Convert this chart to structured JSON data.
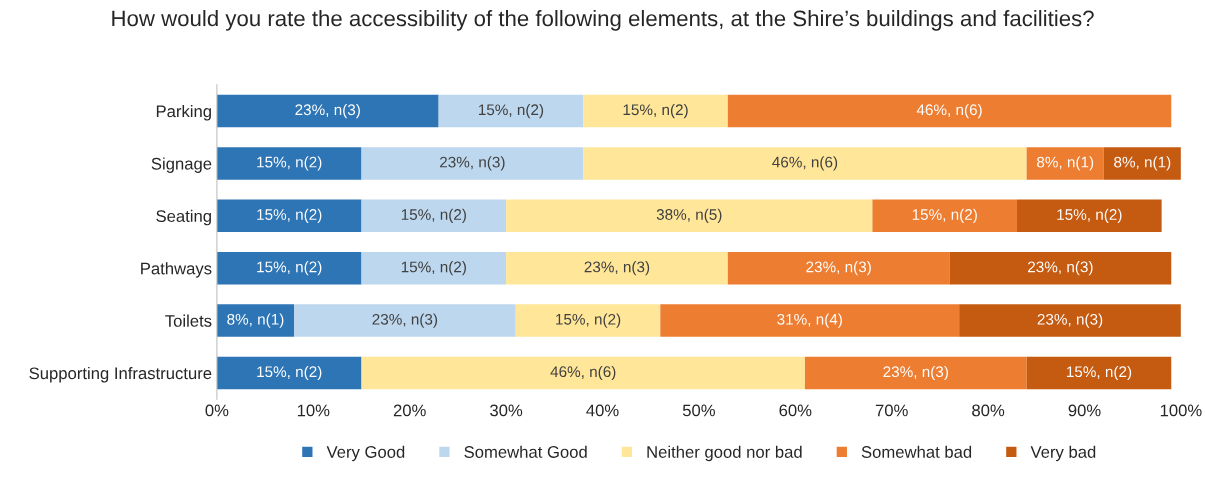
{
  "chart_data": {
    "type": "bar",
    "orientation": "horizontal",
    "stacked": true,
    "title": "How would you rate the accessibility of the following elements, at the Shire’s buildings and facilities?",
    "categories": [
      "Parking",
      "Signage",
      "Seating",
      "Pathways",
      "Toilets",
      "Supporting Infrastructure"
    ],
    "series": [
      {
        "name": "Very Good",
        "color": "#2e75b6",
        "values": [
          23,
          15,
          15,
          15,
          8,
          15
        ],
        "value_labels": [
          "23%, n(3)",
          "15%, n(2)",
          "15%, n(2)",
          "15%, n(2)",
          "8%, n(1)",
          "15%, n(2)"
        ]
      },
      {
        "name": "Somewhat Good",
        "color": "#bdd7ee",
        "values": [
          15,
          23,
          15,
          15,
          23,
          null
        ],
        "value_labels": [
          "15%, n(2)",
          "23%, n(3)",
          "15%, n(2)",
          "15%, n(2)",
          "23%, n(3)",
          null
        ]
      },
      {
        "name": "Neither good nor bad",
        "color": "#ffe699",
        "values": [
          15,
          46,
          38,
          23,
          15,
          46
        ],
        "value_labels": [
          "15%, n(2)",
          "46%, n(6)",
          "38%, n(5)",
          "23%, n(3)",
          "15%, n(2)",
          "46%, n(6)"
        ]
      },
      {
        "name": "Somewhat bad",
        "color": "#ed7d31",
        "values": [
          46,
          8,
          15,
          23,
          31,
          23
        ],
        "value_labels": [
          "46%, n(6)",
          "8%, n(1)",
          "15%, n(2)",
          "23%, n(3)",
          "31%, n(4)",
          "23%, n(3)"
        ]
      },
      {
        "name": "Very bad",
        "color": "#c55a11",
        "values": [
          null,
          8,
          15,
          23,
          23,
          15
        ],
        "value_labels": [
          null,
          "8%, n(1)",
          "15%, n(2)",
          "23%, n(3)",
          "23%, n(3)",
          "15%, n(2)"
        ]
      }
    ],
    "xlim": [
      0,
      100
    ],
    "xticks": [
      {
        "value": 0,
        "label": "0%"
      },
      {
        "value": 10,
        "label": "10%"
      },
      {
        "value": 20,
        "label": "20%"
      },
      {
        "value": 30,
        "label": "30%"
      },
      {
        "value": 40,
        "label": "40%"
      },
      {
        "value": 50,
        "label": "50%"
      },
      {
        "value": 60,
        "label": "60%"
      },
      {
        "value": 70,
        "label": "70%"
      },
      {
        "value": 80,
        "label": "80%"
      },
      {
        "value": 90,
        "label": "90%"
      },
      {
        "value": 100,
        "label": "100%"
      }
    ],
    "legend": "bottom",
    "grid": false
  }
}
